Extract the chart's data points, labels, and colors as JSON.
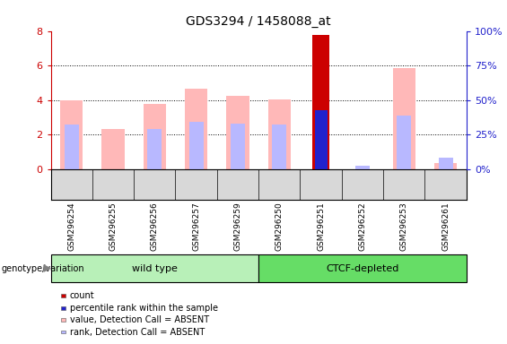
{
  "title": "GDS3294 / 1458088_at",
  "samples": [
    "GSM296254",
    "GSM296255",
    "GSM296256",
    "GSM296257",
    "GSM296259",
    "GSM296250",
    "GSM296251",
    "GSM296252",
    "GSM296253",
    "GSM296261"
  ],
  "groups": [
    "wild type",
    "wild type",
    "wild type",
    "wild type",
    "wild type",
    "CTCF-depleted",
    "CTCF-depleted",
    "CTCF-depleted",
    "CTCF-depleted",
    "CTCF-depleted"
  ],
  "group_labels": [
    "wild type",
    "CTCF-depleted"
  ],
  "group_colors": [
    "#b8f0b8",
    "#66dd66"
  ],
  "value_absent": [
    4.0,
    2.3,
    3.75,
    4.65,
    4.25,
    4.05,
    null,
    null,
    5.85,
    0.35
  ],
  "rank_absent": [
    2.55,
    null,
    2.3,
    2.75,
    2.65,
    2.55,
    null,
    0.2,
    3.1,
    0.65
  ],
  "count": [
    null,
    null,
    null,
    null,
    null,
    null,
    7.75,
    null,
    null,
    null
  ],
  "percentile": [
    null,
    null,
    null,
    null,
    null,
    null,
    3.4,
    null,
    null,
    null
  ],
  "ylim_left": [
    0,
    8
  ],
  "ylim_right": [
    0,
    100
  ],
  "yticks_left": [
    0,
    2,
    4,
    6,
    8
  ],
  "yticks_right": [
    0,
    25,
    50,
    75,
    100
  ],
  "color_count": "#cc0000",
  "color_percentile": "#2222cc",
  "color_value_absent": "#ffb8b8",
  "color_rank_absent": "#b8b8ff",
  "legend_items": [
    {
      "label": "count",
      "color": "#cc0000"
    },
    {
      "label": "percentile rank within the sample",
      "color": "#2222cc"
    },
    {
      "label": "value, Detection Call = ABSENT",
      "color": "#ffb8b8"
    },
    {
      "label": "rank, Detection Call = ABSENT",
      "color": "#b8b8ff"
    }
  ],
  "genotype_label": "genotype/variation",
  "bg_color": "#ffffff",
  "tick_color_left": "#cc0000",
  "tick_color_right": "#2222cc",
  "grid_color": "#000000"
}
